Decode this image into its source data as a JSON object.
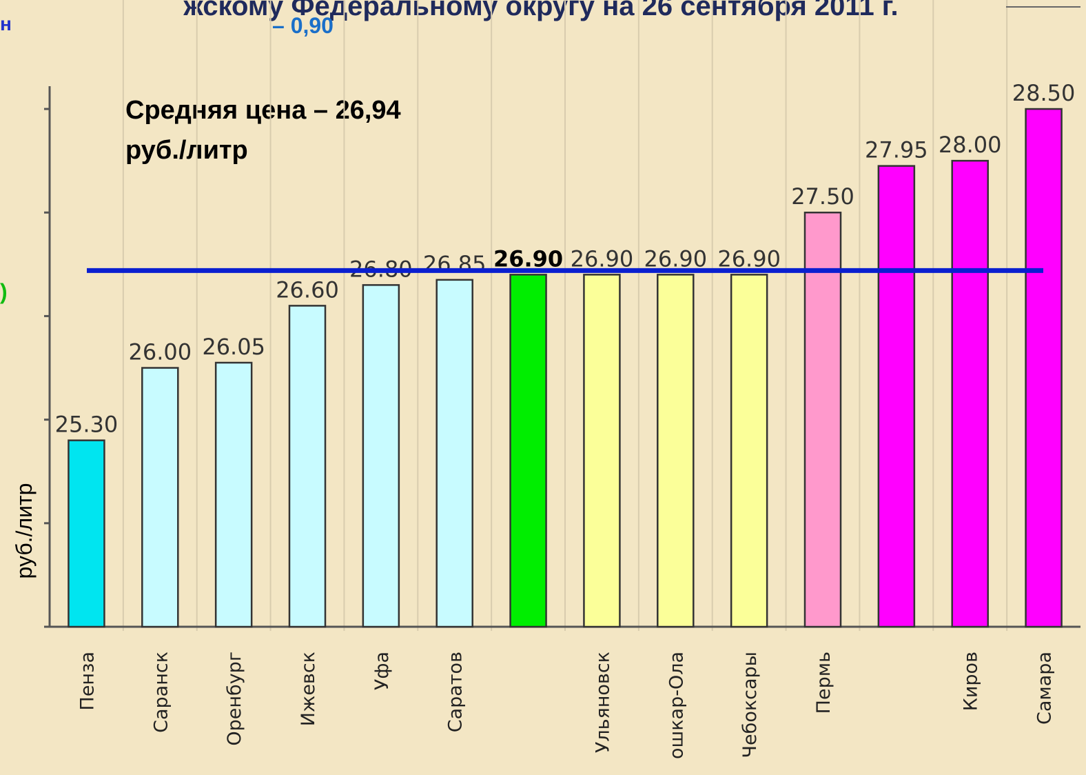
{
  "chart_data": {
    "type": "bar",
    "title": "жскому Федеральному округу на 26 сентября 2011 г.",
    "fragments": [
      "н",
      "– 0,90",
      ")"
    ],
    "annotation": [
      "Средняя цена – 26,94",
      "руб./литр"
    ],
    "y_label": "руб./литр",
    "categories": [
      "Пенза",
      "Саранск",
      "Оренбург",
      "Ижевск",
      "Уфа",
      "Саратов",
      null,
      "Ульяновск",
      "ошкар-Ола",
      "Чебоксары",
      "Пермь",
      null,
      "Киров",
      "Самара"
    ],
    "values": [
      25.3,
      26.0,
      26.05,
      26.6,
      26.8,
      26.85,
      26.9,
      26.9,
      26.9,
      26.9,
      27.5,
      27.95,
      28.0,
      28.5
    ],
    "value_labels": [
      "25.30",
      "26.00",
      "26.05",
      "26.60",
      "26.80",
      "26.85",
      "26.90",
      "26.90",
      "26.90",
      "26.90",
      "27.50",
      "27.95",
      "28.00",
      "28.50"
    ],
    "colors": [
      "#00e5f0",
      "#c8fbff",
      "#c8fbff",
      "#c8fbff",
      "#c8fbff",
      "#c8fbff",
      "#00ee00",
      "#fbff99",
      "#fbff99",
      "#fbff99",
      "#ff99cc",
      "#ff00ff",
      "#ff00ff",
      "#ff00ff"
    ],
    "highlight": 6,
    "average": 26.94,
    "average_color": "#0a1fd0",
    "ylim": [
      23.5,
      28.72
    ],
    "yticks": [
      23.5,
      24.5,
      25.5,
      26.5,
      27.5,
      28.5
    ],
    "grid": true
  }
}
